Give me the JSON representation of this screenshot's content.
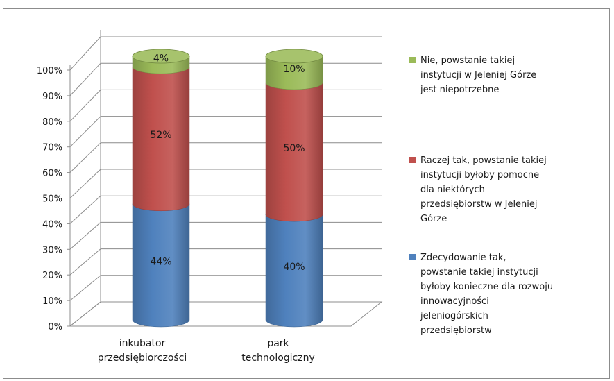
{
  "chart_data": {
    "type": "bar",
    "stacked": true,
    "three_d": true,
    "shape": "cylinder",
    "categories": [
      "inkubator przedsiębiorczości",
      "park technologiczny"
    ],
    "category_lines": [
      [
        "inkubator",
        "przedsiębiorczości"
      ],
      [
        "park",
        "technologiczny"
      ]
    ],
    "series": [
      {
        "key": "yes",
        "name": "Zdecydowanie tak, powstanie takiej instytucji byłoby konieczne dla rozwoju innowacyjności jeleniogórskich przedsiębiorstw",
        "legend_lines": [
          "Zdecydowanie tak,",
          "powstanie takiej instytucji",
          "byłoby konieczne dla rozwoju",
          "innowacyjności",
          "jeleniogórskich",
          "przedsiębiorstw"
        ],
        "values": [
          44,
          40
        ],
        "labels": [
          "44%",
          "40%"
        ],
        "color": "#4f81bd"
      },
      {
        "key": "rather",
        "name": "Raczej tak, powstanie takiej instytucji byłoby pomocne dla niektórych przedsiębiorstw w Jeleniej Górze",
        "legend_lines": [
          "Raczej tak, powstanie takiej",
          "instytucji byłoby pomocne",
          "dla niektórych",
          "przedsiębiorstw w Jeleniej",
          "Górze"
        ],
        "values": [
          52,
          50
        ],
        "labels": [
          "52%",
          "50%"
        ],
        "color": "#c0504d"
      },
      {
        "key": "no",
        "name": "Nie, powstanie takiej instytucji w Jeleniej Górze jest niepotrzebne",
        "legend_lines": [
          "Nie, powstanie takiej",
          "instytucji w Jeleniej Górze",
          "jest niepotrzebne"
        ],
        "values": [
          4,
          10
        ],
        "labels": [
          "4%",
          "10%"
        ],
        "color": "#9bbb59"
      }
    ],
    "legend_order": [
      "no",
      "rather",
      "yes"
    ],
    "y_ticks": [
      "0%",
      "10%",
      "20%",
      "30%",
      "40%",
      "50%",
      "60%",
      "70%",
      "80%",
      "90%",
      "100%"
    ],
    "ylim": [
      0,
      100
    ],
    "grid": true,
    "legend_position": "right",
    "title": "",
    "xlabel": "",
    "ylabel": ""
  }
}
